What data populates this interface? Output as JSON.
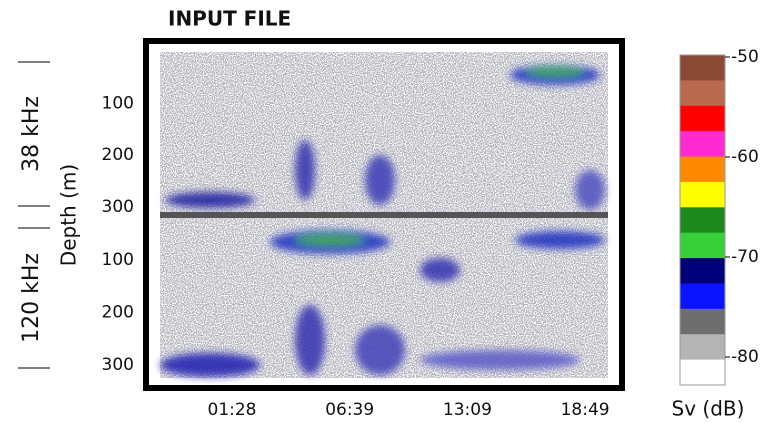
{
  "title": "INPUT FILE",
  "y_label": "Depth (m)",
  "panels": [
    {
      "label": "38 kHz",
      "ylim": [
        0,
        310
      ],
      "yticks": [
        100,
        200,
        300
      ]
    },
    {
      "label": "120 kHz",
      "ylim": [
        20,
        325
      ],
      "yticks": [
        100,
        200,
        300
      ]
    }
  ],
  "x_ticks": [
    "01:28",
    "06:39",
    "13:09",
    "18:49"
  ],
  "colorbar": {
    "label": "Sv (dB)",
    "lim": [
      -49.8,
      -82.8
    ],
    "ticks": [
      -50,
      -60,
      -70,
      -80
    ],
    "colors": [
      "#8b4a36",
      "#b8694e",
      "#ff0000",
      "#ff2bd0",
      "#ff8a00",
      "#ffff00",
      "#1e8a1e",
      "#38d038",
      "#00007a",
      "#0a14ff",
      "#6e6e6e",
      "#b4b4b4",
      "#ffffff"
    ]
  }
}
